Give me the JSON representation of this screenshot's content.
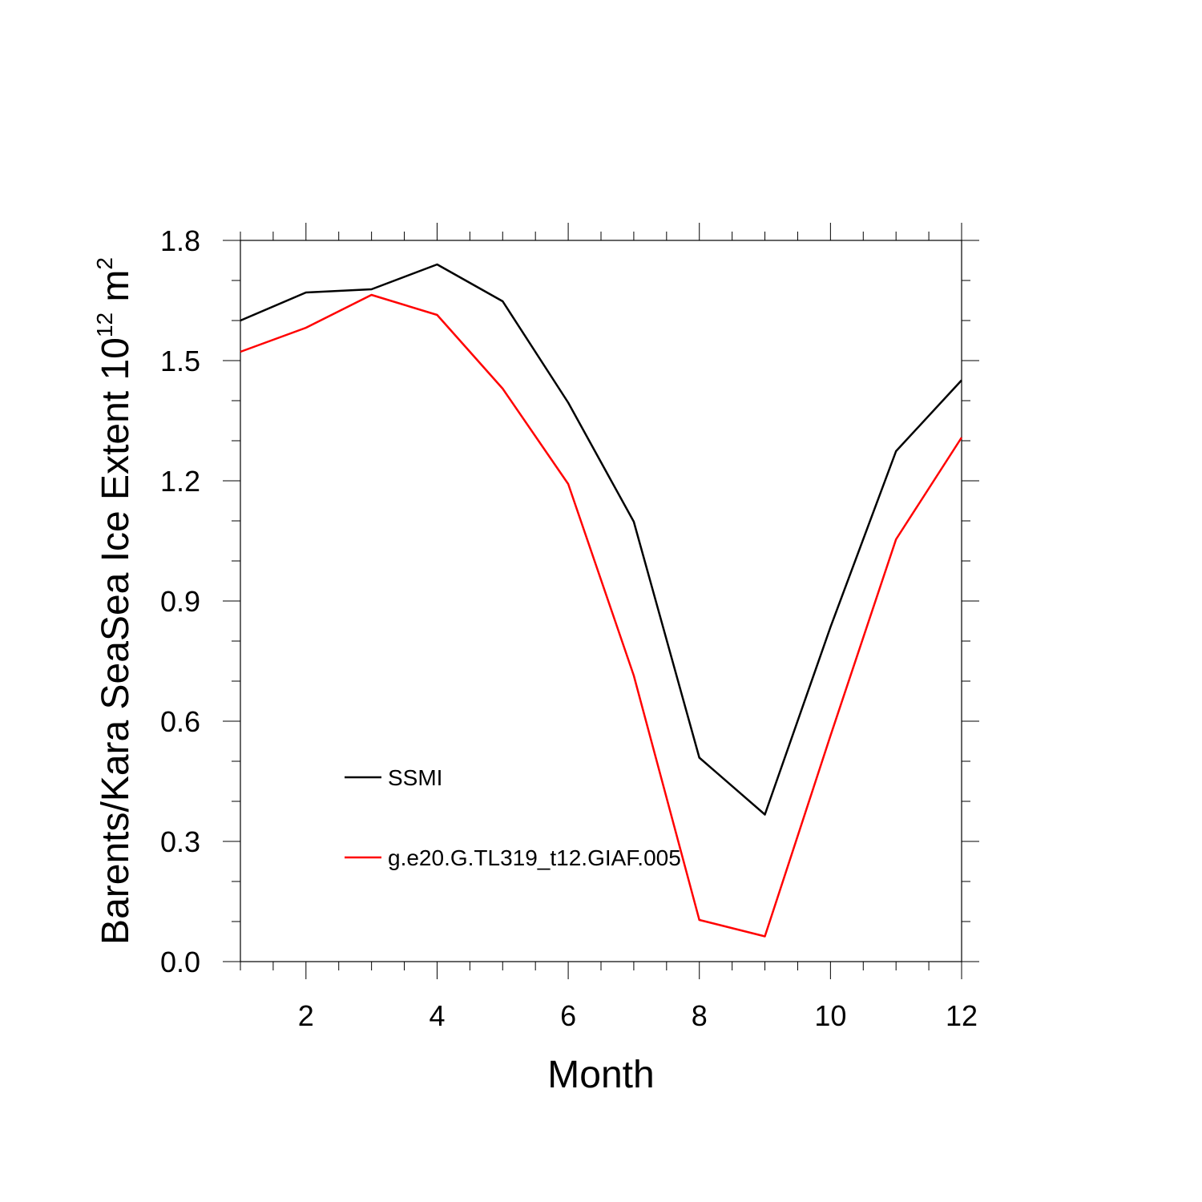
{
  "chart_data": {
    "type": "line",
    "xlabel": "Month",
    "ylabel_main": "Barents/Kara SeaSea Ice Extent 10",
    "ylabel_exp": "12",
    "ylabel_unit": " m",
    "ylabel_unit_exp": "2",
    "xlim": [
      1,
      12
    ],
    "ylim": [
      0.0,
      1.8
    ],
    "xticks": [
      2,
      4,
      6,
      8,
      10,
      12
    ],
    "xtick_labels": [
      "2",
      "4",
      "6",
      "8",
      "10",
      "12"
    ],
    "yticks": [
      0.0,
      0.3,
      0.6,
      0.9,
      1.2,
      1.5,
      1.8
    ],
    "ytick_labels": [
      "0.0",
      "0.3",
      "0.6",
      "0.9",
      "1.2",
      "1.5",
      "1.8"
    ],
    "grid": false,
    "legend_position": "inside lower-left",
    "x": [
      1,
      2,
      3,
      4,
      5,
      6,
      7,
      8,
      9,
      10,
      11,
      12
    ],
    "series": [
      {
        "name": "SSMI",
        "color": "#000000",
        "values": [
          1.6,
          1.67,
          1.678,
          1.74,
          1.648,
          1.395,
          1.098,
          0.509,
          0.367,
          0.835,
          1.274,
          1.451
        ]
      },
      {
        "name": "g.e20.G.TL319_t12.GIAF.005",
        "color": "#ff0000",
        "values": [
          1.522,
          1.582,
          1.664,
          1.614,
          1.43,
          1.192,
          0.714,
          0.104,
          0.063,
          0.564,
          1.054,
          1.308
        ]
      }
    ]
  }
}
